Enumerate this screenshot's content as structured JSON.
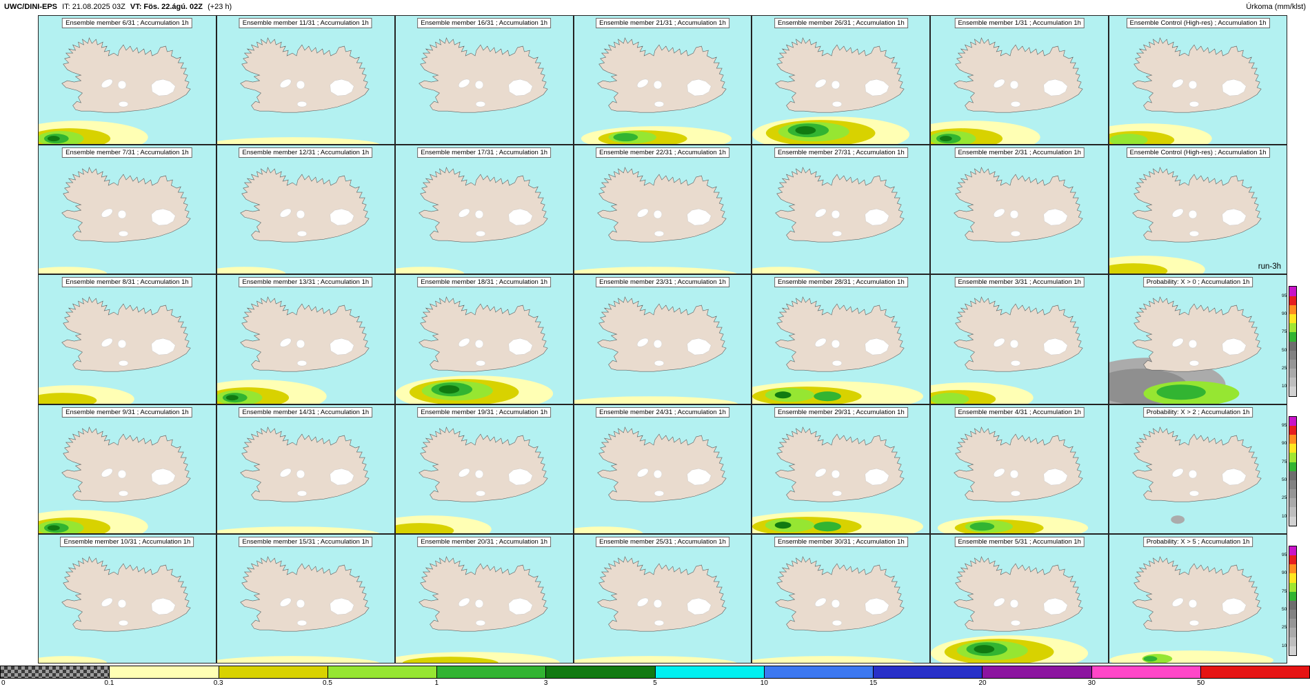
{
  "header": {
    "model": "UWC/DINI-EPS",
    "init": "IT: 21.08.2025 03Z",
    "valid": "VT: Fös. 22.ágú. 02Z",
    "lead": "(+23 h)",
    "parameter": "Úrkoma (mm/klst)"
  },
  "panels": [
    {
      "title": "Ensemble member 6/31 ; Accumulation 1h",
      "pattern": "dark_sw"
    },
    {
      "title": "Ensemble member 11/31 ; Accumulation 1h",
      "pattern": "sliver"
    },
    {
      "title": "Ensemble member 16/31 ; Accumulation 1h",
      "pattern": "none"
    },
    {
      "title": "Ensemble member 21/31 ; Accumulation 1h",
      "pattern": "green_center"
    },
    {
      "title": "Ensemble member 26/31 ; Accumulation 1h",
      "pattern": "strong_center"
    },
    {
      "title": "Ensemble member 1/31 ; Accumulation 1h",
      "pattern": "dark_sw"
    },
    {
      "title": "Ensemble Control (High-res) ; Accumulation 1h",
      "pattern": "green_sw"
    },
    {
      "title": "Ensemble member 7/31 ; Accumulation 1h",
      "pattern": "tiny"
    },
    {
      "title": "Ensemble member 12/31 ; Accumulation 1h",
      "pattern": "tiny"
    },
    {
      "title": "Ensemble member 17/31 ; Accumulation 1h",
      "pattern": "tiny"
    },
    {
      "title": "Ensemble member 22/31 ; Accumulation 1h",
      "pattern": "sliver"
    },
    {
      "title": "Ensemble member 27/31 ; Accumulation 1h",
      "pattern": "tiny"
    },
    {
      "title": "Ensemble member 2/31 ; Accumulation 1h",
      "pattern": "none"
    },
    {
      "title": "Ensemble Control (High-res) ; Accumulation 1h",
      "pattern": "band_sw",
      "run_label": "run-3h"
    },
    {
      "title": "Ensemble member 8/31 ; Accumulation 1h",
      "pattern": "band_sw"
    },
    {
      "title": "Ensemble member 13/31 ; Accumulation 1h",
      "pattern": "dark_sw"
    },
    {
      "title": "Ensemble member 18/31 ; Accumulation 1h",
      "pattern": "strong_center"
    },
    {
      "title": "Ensemble member 23/31 ; Accumulation 1h",
      "pattern": "sliver"
    },
    {
      "title": "Ensemble member 28/31 ; Accumulation 1h",
      "pattern": "green_wide"
    },
    {
      "title": "Ensemble member 3/31 ; Accumulation 1h",
      "pattern": "green_sw"
    },
    {
      "title": "Probability: X > 0 ; Accumulation 1h",
      "pattern": "prob_large",
      "prob_colorbar": true
    },
    {
      "title": "Ensemble member 9/31 ; Accumulation 1h",
      "pattern": "dark_sw"
    },
    {
      "title": "Ensemble member 14/31 ; Accumulation 1h",
      "pattern": "sliver"
    },
    {
      "title": "Ensemble member 19/31 ; Accumulation 1h",
      "pattern": "band_sw"
    },
    {
      "title": "Ensemble member 24/31 ; Accumulation 1h",
      "pattern": "tiny"
    },
    {
      "title": "Ensemble member 29/31 ; Accumulation 1h",
      "pattern": "green_wide"
    },
    {
      "title": "Ensemble member 4/31 ; Accumulation 1h",
      "pattern": "green_center"
    },
    {
      "title": "Probability: X > 2 ; Accumulation 1h",
      "pattern": "prob_speck",
      "prob_colorbar": true
    },
    {
      "title": "Ensemble member 10/31 ; Accumulation 1h",
      "pattern": "tiny"
    },
    {
      "title": "Ensemble member 15/31 ; Accumulation 1h",
      "pattern": "sliver"
    },
    {
      "title": "Ensemble member 20/31 ; Accumulation 1h",
      "pattern": "band"
    },
    {
      "title": "Ensemble member 25/31 ; Accumulation 1h",
      "pattern": "sliver"
    },
    {
      "title": "Ensemble member 30/31 ; Accumulation 1h",
      "pattern": "sliver"
    },
    {
      "title": "Ensemble member 5/31 ; Accumulation 1h",
      "pattern": "strong_center"
    },
    {
      "title": "Probability: X > 5 ; Accumulation 1h",
      "pattern": "prob_band",
      "prob_colorbar": true
    }
  ],
  "colorbar": {
    "labels": [
      "0",
      "0.1",
      "0.3",
      "0.5",
      "1",
      "3",
      "5",
      "10",
      "15",
      "20",
      "30",
      "50"
    ],
    "colors": [
      "checker",
      "#ffffb4",
      "#d8d200",
      "#96e632",
      "#32b432",
      "#117a11",
      "#00f0f0",
      "#3c78f0",
      "#2830c8",
      "#8c14a0",
      "#ff46c8",
      "#e61414"
    ]
  },
  "prob_colorbar": {
    "labels": [
      "95",
      "90",
      "75",
      "50",
      "25",
      "10"
    ],
    "colors": [
      "#c814c8",
      "#e61e1e",
      "#ff8c1e",
      "#ffe61e",
      "#a0e632",
      "#32b432",
      "#6e6e6e",
      "#828282",
      "#969696",
      "#aaaaaa",
      "#bebebe",
      "#d2d2d2"
    ]
  },
  "map_colors": {
    "ocean": "#b3f1f1",
    "land": "#e9dbce",
    "precip_levels": {
      "pale_yellow": "#ffffb4",
      "olive_yellow": "#d8d200",
      "light_green": "#96e632",
      "green": "#32b432",
      "dark_green": "#117a11",
      "prob_gray_outer": "#ababab",
      "prob_gray_inner": "#8f8f8f"
    }
  }
}
